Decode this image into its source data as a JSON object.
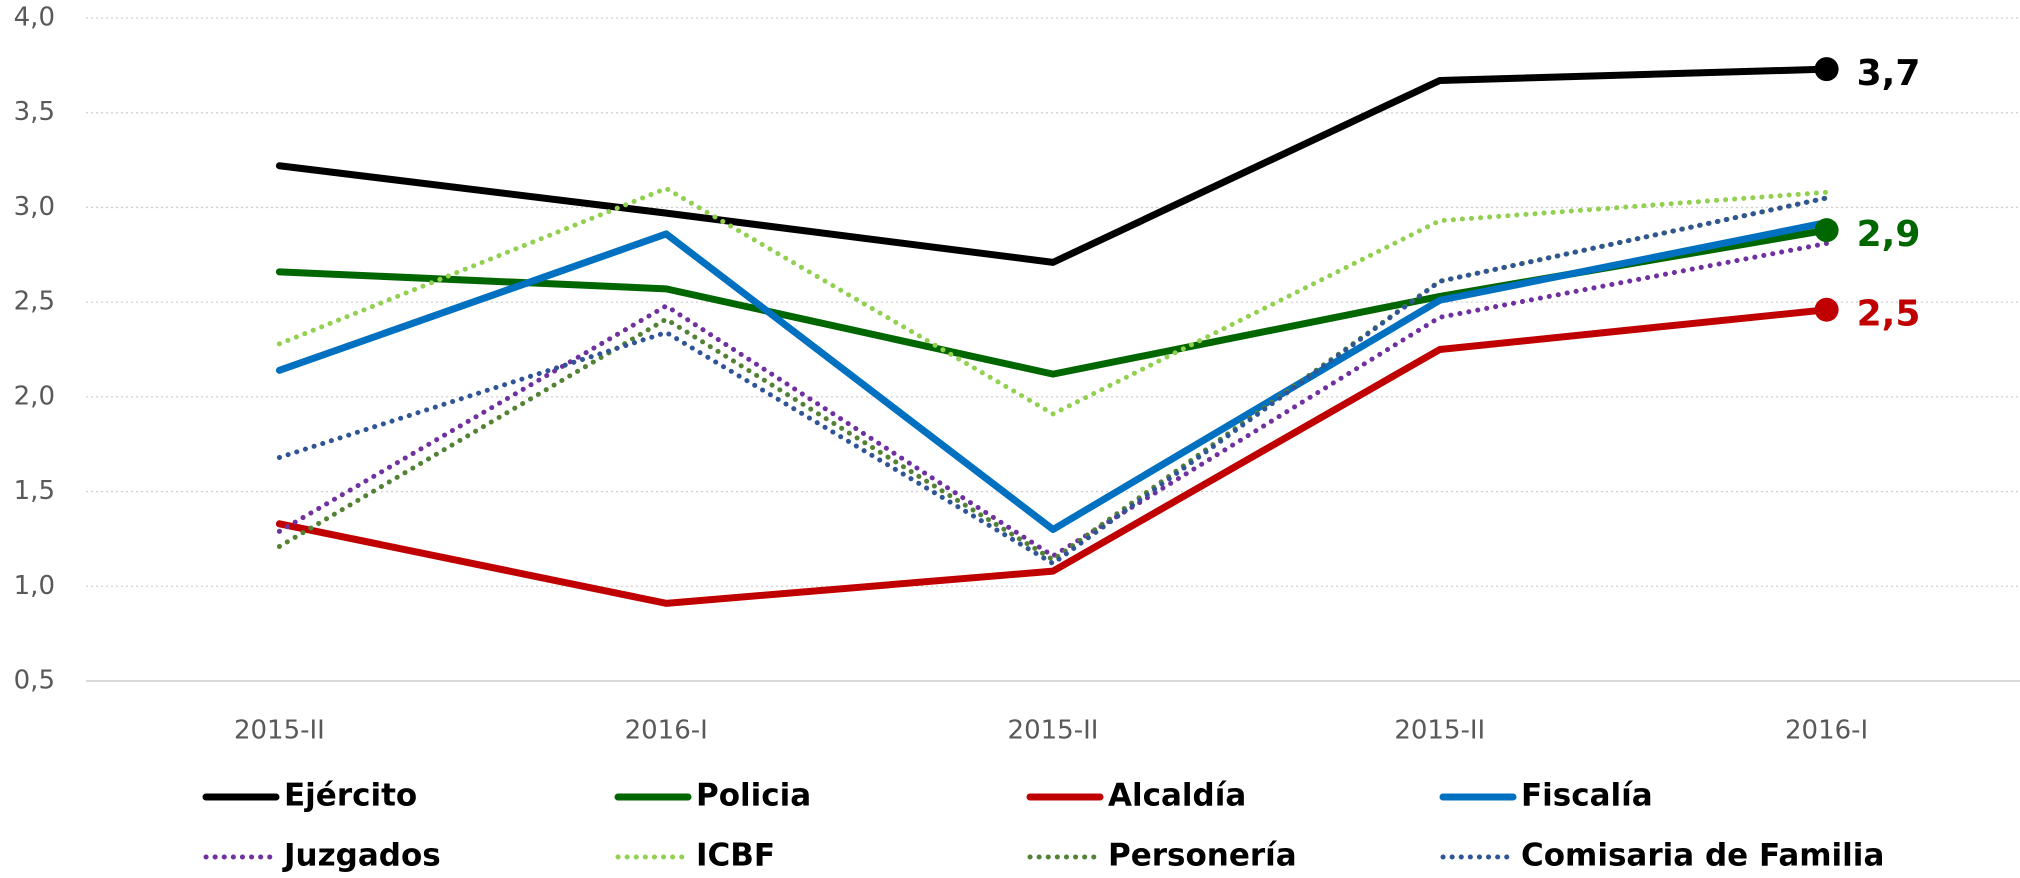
{
  "chart_data": {
    "type": "line",
    "categories": [
      "2015-II",
      "2016-I",
      "2015-II",
      "2015-II",
      "2016-I"
    ],
    "ylim": [
      0.5,
      4.0
    ],
    "yticks": [
      {
        "value": 0.5,
        "label": "0,5"
      },
      {
        "value": 1.0,
        "label": "1,0"
      },
      {
        "value": 1.5,
        "label": "1,5"
      },
      {
        "value": 2.0,
        "label": "2,0"
      },
      {
        "value": 2.5,
        "label": "2,5"
      },
      {
        "value": 3.0,
        "label": "3,0"
      },
      {
        "value": 3.5,
        "label": "3,5"
      },
      {
        "value": 4.0,
        "label": "4,0"
      }
    ],
    "grid": true,
    "legend": "bottom",
    "series": [
      {
        "name": "Ejército",
        "color": "#000000",
        "dash": "solid",
        "values": [
          3.22,
          2.97,
          2.71,
          3.67,
          3.73
        ],
        "value_labels": [
          null,
          null,
          null,
          null,
          "3,7"
        ]
      },
      {
        "name": "Policia",
        "color": "#006600",
        "dash": "solid",
        "values": [
          2.66,
          2.57,
          2.12,
          2.53,
          2.88
        ],
        "value_labels": [
          null,
          null,
          null,
          null,
          "2,9"
        ]
      },
      {
        "name": "Alcaldía",
        "color": "#c00000",
        "dash": "solid",
        "values": [
          1.33,
          0.91,
          1.08,
          2.25,
          2.46
        ],
        "value_labels": [
          null,
          null,
          null,
          null,
          "2,5"
        ]
      },
      {
        "name": "Fiscalía",
        "color": "#0070c0",
        "dash": "solid",
        "values": [
          2.14,
          2.86,
          1.3,
          2.51,
          2.92
        ]
      },
      {
        "name": "Juzgados",
        "color": "#7030a0",
        "dash": "dot",
        "values": [
          1.29,
          2.48,
          1.16,
          2.42,
          2.81
        ]
      },
      {
        "name": "ICBF",
        "color": "#92d050",
        "dash": "dot",
        "values": [
          2.28,
          3.1,
          1.91,
          2.93,
          3.08
        ]
      },
      {
        "name": "Personería",
        "color": "#548235",
        "dash": "dot",
        "values": [
          1.21,
          2.41,
          1.14,
          2.61,
          3.05
        ]
      },
      {
        "name": "Comisaria de Familia",
        "color": "#2f5597",
        "dash": "dot",
        "values": [
          1.68,
          2.34,
          1.12,
          2.61,
          3.05
        ]
      }
    ]
  }
}
